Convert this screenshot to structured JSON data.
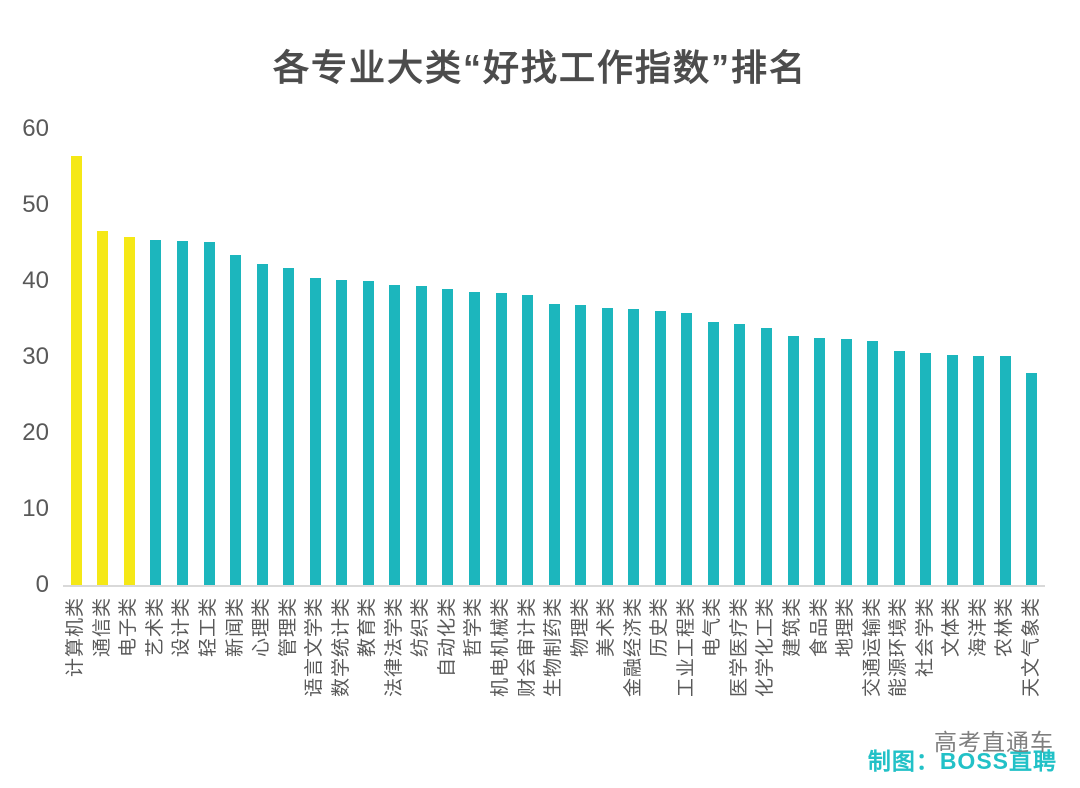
{
  "page": {
    "background": "#ffffff"
  },
  "chart_data": {
    "type": "bar",
    "title": "各专业大类“好找工作指数”排名",
    "xlabel": "",
    "ylabel": "",
    "ylim": [
      0,
      60
    ],
    "yticks": [
      0,
      10,
      20,
      30,
      40,
      50,
      60
    ],
    "grid": false,
    "legend_position": "none",
    "bar_color": "#1CB6BD",
    "highlight_color": "#F5E816",
    "highlight_count": 3,
    "highlighted_categories": [
      "计算机类",
      "通信类",
      "电子类"
    ],
    "categories": [
      "计算机类",
      "通信类",
      "电子类",
      "艺术类",
      "设计类",
      "轻工类",
      "新闻类",
      "心理类",
      "管理类",
      "语言文学类",
      "数学统计类",
      "教育类",
      "法律法学类",
      "纺织类",
      "自动化类",
      "哲学类",
      "机电机械类",
      "财会审计类",
      "生物制药类",
      "物理类",
      "美术类",
      "金融经济类",
      "历史类",
      "工业工程类",
      "电气类",
      "医学医疗类",
      "化学化工类",
      "建筑类",
      "食品类",
      "地理类",
      "交通运输类",
      "能源环境类",
      "社会学类",
      "文体类",
      "海洋类",
      "农林类",
      "天文气象类"
    ],
    "values": [
      56.4,
      46.6,
      45.8,
      45.4,
      45.3,
      45.1,
      43.4,
      42.2,
      41.7,
      40.4,
      40.1,
      40.0,
      39.5,
      39.4,
      38.9,
      38.5,
      38.4,
      38.2,
      37.0,
      36.8,
      36.4,
      36.3,
      36.1,
      35.8,
      34.6,
      34.4,
      33.8,
      32.8,
      32.5,
      32.4,
      32.1,
      30.8,
      30.5,
      30.3,
      30.1,
      30.1,
      27.9
    ],
    "axis_line_color": "#d9d9d9",
    "tick_label_color": "#595959",
    "title_color": "#4c4c4c"
  },
  "footer": {
    "credit": "制图：BOSS直聘",
    "credit_color": "#22C1C7",
    "watermark": "高考直通车",
    "watermark_color": "#7f7f7f"
  }
}
